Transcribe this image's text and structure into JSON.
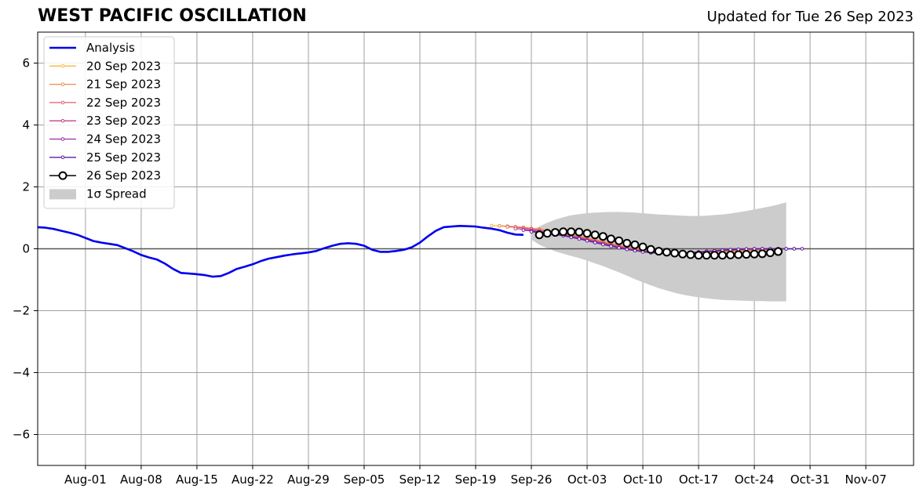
{
  "header": {
    "title": "WEST PACIFIC OSCILLATION",
    "updated": "Updated for Tue 26 Sep 2023"
  },
  "chart_data": {
    "type": "line",
    "title": "WEST PACIFIC OSCILLATION",
    "subtitle": "Updated for Tue 26 Sep 2023",
    "xlabel": "",
    "ylabel": "",
    "grid": true,
    "legend_position": "top-left",
    "x_unit": "date",
    "xlim": [
      "2023-07-26",
      "2023-11-13"
    ],
    "ylim": [
      -7,
      7
    ],
    "x_ticks": [
      {
        "date": "2023-08-01",
        "label": "Aug-01"
      },
      {
        "date": "2023-08-08",
        "label": "Aug-08"
      },
      {
        "date": "2023-08-15",
        "label": "Aug-15"
      },
      {
        "date": "2023-08-22",
        "label": "Aug-22"
      },
      {
        "date": "2023-08-29",
        "label": "Aug-29"
      },
      {
        "date": "2023-09-05",
        "label": "Sep-05"
      },
      {
        "date": "2023-09-12",
        "label": "Sep-12"
      },
      {
        "date": "2023-09-19",
        "label": "Sep-19"
      },
      {
        "date": "2023-09-26",
        "label": "Sep-26"
      },
      {
        "date": "2023-10-03",
        "label": "Oct-03"
      },
      {
        "date": "2023-10-10",
        "label": "Oct-10"
      },
      {
        "date": "2023-10-17",
        "label": "Oct-17"
      },
      {
        "date": "2023-10-24",
        "label": "Oct-24"
      },
      {
        "date": "2023-10-31",
        "label": "Oct-31"
      },
      {
        "date": "2023-11-07",
        "label": "Nov-07"
      }
    ],
    "y_ticks": [
      {
        "value": -6,
        "label": "−6"
      },
      {
        "value": -4,
        "label": "−4"
      },
      {
        "value": -2,
        "label": "−2"
      },
      {
        "value": 0,
        "label": "0"
      },
      {
        "value": 2,
        "label": "2"
      },
      {
        "value": 4,
        "label": "4"
      },
      {
        "value": 6,
        "label": "6"
      }
    ],
    "analysis": {
      "name": "Analysis",
      "color": "#0000ee",
      "x": [
        "2023-07-26",
        "2023-07-27",
        "2023-07-28",
        "2023-07-29",
        "2023-07-30",
        "2023-07-31",
        "2023-08-01",
        "2023-08-02",
        "2023-08-03",
        "2023-08-04",
        "2023-08-05",
        "2023-08-06",
        "2023-08-07",
        "2023-08-08",
        "2023-08-09",
        "2023-08-10",
        "2023-08-11",
        "2023-08-12",
        "2023-08-13",
        "2023-08-14",
        "2023-08-15",
        "2023-08-16",
        "2023-08-17",
        "2023-08-18",
        "2023-08-19",
        "2023-08-20",
        "2023-08-21",
        "2023-08-22",
        "2023-08-23",
        "2023-08-24",
        "2023-08-25",
        "2023-08-26",
        "2023-08-27",
        "2023-08-28",
        "2023-08-29",
        "2023-08-30",
        "2023-08-31",
        "2023-09-01",
        "2023-09-02",
        "2023-09-03",
        "2023-09-04",
        "2023-09-05",
        "2023-09-06",
        "2023-09-07",
        "2023-09-08",
        "2023-09-09",
        "2023-09-10",
        "2023-09-11",
        "2023-09-12",
        "2023-09-13",
        "2023-09-14",
        "2023-09-15",
        "2023-09-16",
        "2023-09-17",
        "2023-09-18",
        "2023-09-19",
        "2023-09-20",
        "2023-09-21",
        "2023-09-22",
        "2023-09-23",
        "2023-09-24",
        "2023-09-25"
      ],
      "y": [
        0.7,
        0.68,
        0.64,
        0.58,
        0.52,
        0.45,
        0.35,
        0.25,
        0.2,
        0.16,
        0.12,
        0.02,
        -0.08,
        -0.2,
        -0.28,
        -0.35,
        -0.48,
        -0.65,
        -0.78,
        -0.8,
        -0.82,
        -0.85,
        -0.9,
        -0.88,
        -0.78,
        -0.65,
        -0.58,
        -0.5,
        -0.4,
        -0.32,
        -0.27,
        -0.22,
        -0.18,
        -0.15,
        -0.12,
        -0.07,
        0.02,
        0.1,
        0.16,
        0.18,
        0.16,
        0.1,
        -0.03,
        -0.1,
        -0.1,
        -0.07,
        -0.03,
        0.05,
        0.2,
        0.4,
        0.58,
        0.7,
        0.72,
        0.74,
        0.73,
        0.72,
        0.68,
        0.65,
        0.6,
        0.52,
        0.46,
        0.45
      ]
    },
    "forecasts": [
      {
        "name": "20 Sep 2023",
        "color": "#f5b942",
        "start": "2023-09-21",
        "y": [
          0.75,
          0.74,
          0.72,
          0.71,
          0.69,
          0.66,
          0.63,
          0.6,
          0.56,
          0.52,
          0.47,
          0.42,
          0.36,
          0.3,
          0.24,
          0.18,
          0.12,
          0.07,
          0.02,
          -0.03,
          -0.07,
          -0.1,
          -0.13,
          -0.15,
          -0.16,
          -0.17,
          -0.17,
          -0.16,
          -0.15,
          -0.13,
          -0.11,
          -0.09,
          -0.07,
          -0.05,
          -0.04
        ]
      },
      {
        "name": "21 Sep 2023",
        "color": "#f08a4b",
        "start": "2023-09-22",
        "y": [
          0.74,
          0.73,
          0.71,
          0.69,
          0.66,
          0.63,
          0.59,
          0.55,
          0.51,
          0.46,
          0.41,
          0.35,
          0.29,
          0.23,
          0.17,
          0.11,
          0.06,
          0.01,
          -0.04,
          -0.08,
          -0.11,
          -0.13,
          -0.14,
          -0.15,
          -0.15,
          -0.14,
          -0.12,
          -0.1,
          -0.08,
          -0.07,
          -0.06,
          -0.05,
          -0.04,
          -0.03,
          -0.03
        ]
      },
      {
        "name": "22 Sep 2023",
        "color": "#e05f6b",
        "start": "2023-09-23",
        "y": [
          0.71,
          0.7,
          0.67,
          0.64,
          0.61,
          0.57,
          0.53,
          0.48,
          0.43,
          0.38,
          0.32,
          0.26,
          0.2,
          0.14,
          0.08,
          0.03,
          -0.02,
          -0.06,
          -0.1,
          -0.12,
          -0.14,
          -0.15,
          -0.15,
          -0.14,
          -0.13,
          -0.11,
          -0.09,
          -0.07,
          -0.05,
          -0.04,
          -0.03,
          -0.02,
          -0.02,
          -0.01,
          -0.01
        ]
      },
      {
        "name": "23 Sep 2023",
        "color": "#c0428a",
        "start": "2023-09-24",
        "y": [
          0.65,
          0.63,
          0.6,
          0.57,
          0.53,
          0.49,
          0.45,
          0.4,
          0.35,
          0.3,
          0.24,
          0.18,
          0.12,
          0.06,
          0.01,
          -0.04,
          -0.08,
          -0.11,
          -0.13,
          -0.14,
          -0.14,
          -0.13,
          -0.12,
          -0.1,
          -0.08,
          -0.06,
          -0.04,
          -0.03,
          -0.02,
          -0.01,
          0.0,
          0.0,
          0.0,
          0.0,
          0.0
        ]
      },
      {
        "name": "24 Sep 2023",
        "color": "#9b2ba8",
        "start": "2023-09-25",
        "y": [
          0.6,
          0.58,
          0.55,
          0.51,
          0.47,
          0.43,
          0.38,
          0.33,
          0.27,
          0.21,
          0.15,
          0.1,
          0.04,
          -0.01,
          -0.05,
          -0.09,
          -0.12,
          -0.14,
          -0.15,
          -0.15,
          -0.14,
          -0.12,
          -0.1,
          -0.08,
          -0.06,
          -0.04,
          -0.03,
          -0.02,
          -0.01,
          0.0,
          0.0,
          0.0,
          0.0,
          0.0,
          0.0
        ]
      },
      {
        "name": "25 Sep 2023",
        "color": "#5a1ea0",
        "start": "2023-09-26",
        "y": [
          0.55,
          0.53,
          0.5,
          0.46,
          0.42,
          0.37,
          0.32,
          0.26,
          0.2,
          0.14,
          0.08,
          0.03,
          -0.02,
          -0.06,
          -0.1,
          -0.13,
          -0.15,
          -0.16,
          -0.16,
          -0.15,
          -0.13,
          -0.11,
          -0.09,
          -0.07,
          -0.05,
          -0.03,
          -0.02,
          -0.01,
          0.0,
          0.0,
          0.0,
          0.0,
          0.0,
          0.0,
          0.0
        ]
      }
    ],
    "current_forecast": {
      "name": "26 Sep 2023",
      "color": "#000000",
      "start": "2023-09-27",
      "y": [
        0.45,
        0.5,
        0.53,
        0.55,
        0.55,
        0.54,
        0.5,
        0.45,
        0.4,
        0.32,
        0.26,
        0.18,
        0.13,
        0.06,
        -0.02,
        -0.08,
        -0.11,
        -0.14,
        -0.17,
        -0.19,
        -0.21,
        -0.21,
        -0.21,
        -0.21,
        -0.2,
        -0.19,
        -0.18,
        -0.17,
        -0.16,
        -0.13,
        -0.09
      ]
    },
    "spread": {
      "name": "1σ Spread",
      "color": "#cccccc",
      "start": "2023-09-26",
      "upper": [
        0.6,
        0.72,
        0.84,
        0.94,
        1.02,
        1.08,
        1.12,
        1.15,
        1.17,
        1.18,
        1.19,
        1.19,
        1.18,
        1.17,
        1.15,
        1.13,
        1.11,
        1.1,
        1.08,
        1.07,
        1.06,
        1.06,
        1.07,
        1.09,
        1.11,
        1.14,
        1.18,
        1.22,
        1.27,
        1.32,
        1.37,
        1.43,
        1.5
      ],
      "lower": [
        0.3,
        0.13,
        0.02,
        -0.08,
        -0.16,
        -0.23,
        -0.3,
        -0.38,
        -0.47,
        -0.56,
        -0.66,
        -0.76,
        -0.87,
        -0.98,
        -1.08,
        -1.18,
        -1.27,
        -1.35,
        -1.42,
        -1.48,
        -1.53,
        -1.57,
        -1.6,
        -1.63,
        -1.65,
        -1.66,
        -1.67,
        -1.68,
        -1.69,
        -1.69,
        -1.7,
        -1.7,
        -1.7
      ]
    }
  }
}
